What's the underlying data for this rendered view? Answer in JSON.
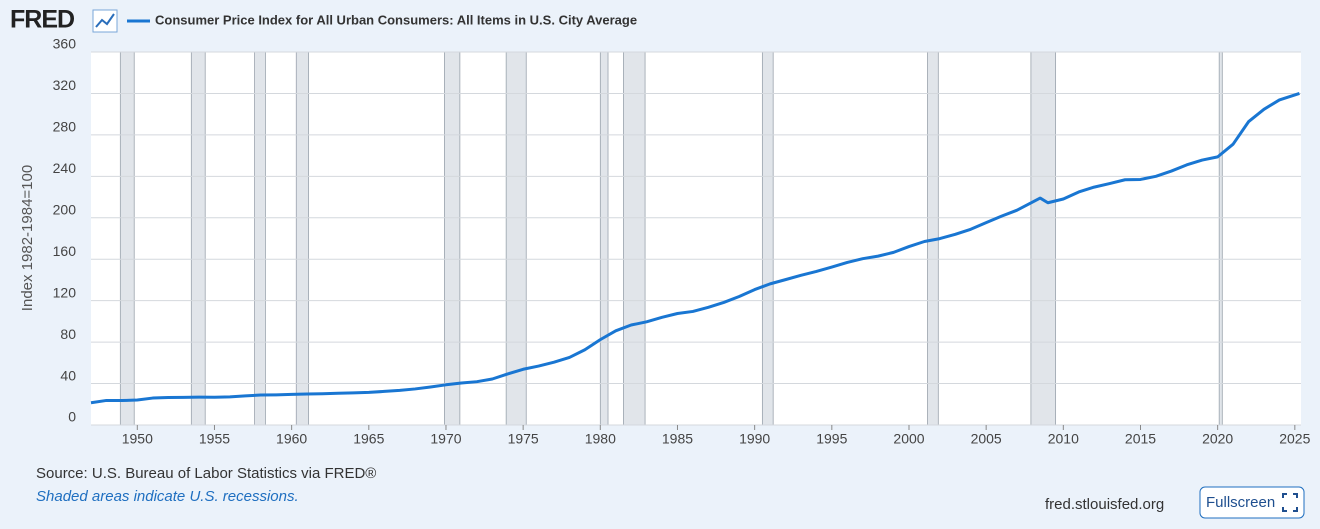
{
  "logo": "FRED",
  "source": "Source: U.S. Bureau of Labor Statistics via FRED®",
  "note": "Shaded areas indicate U.S. recessions.",
  "site": "fred.stlouisfed.org",
  "button": "Fullscreen",
  "chart_data": {
    "type": "line",
    "y_label": "Index 1982-1984=100",
    "x": [
      1947,
      1948,
      1949,
      1950,
      1951,
      1952,
      1953,
      1954,
      1955,
      1956,
      1957,
      1958,
      1959,
      1960,
      1961,
      1962,
      1963,
      1964,
      1965,
      1966,
      1967,
      1968,
      1969,
      1970,
      1971,
      1972,
      1973,
      1974,
      1975,
      1976,
      1977,
      1978,
      1979,
      1980,
      1981,
      1982,
      1983,
      1984,
      1985,
      1986,
      1987,
      1988,
      1989,
      1990,
      1991,
      1992,
      1993,
      1994,
      1995,
      1996,
      1997,
      1998,
      1999,
      2000,
      2001,
      2002,
      2003,
      2004,
      2005,
      2006,
      2007,
      2008.5,
      2009,
      2010,
      2011,
      2012,
      2013,
      2014,
      2015,
      2016,
      2017,
      2018,
      2019,
      2020,
      2021,
      2022,
      2023,
      2024,
      2025.3
    ],
    "series": [
      {
        "name": "Consumer Price Index for All Urban Consumers: All Items in U.S. City Average",
        "color": "#1976d2",
        "values": [
          21.5,
          23.7,
          23.6,
          24.1,
          26.0,
          26.5,
          26.7,
          26.9,
          26.8,
          27.2,
          28.1,
          28.9,
          29.1,
          29.6,
          29.9,
          30.2,
          30.6,
          31.0,
          31.5,
          32.4,
          33.4,
          34.8,
          36.7,
          38.8,
          40.5,
          41.8,
          44.4,
          49.3,
          53.8,
          56.9,
          60.6,
          65.2,
          72.6,
          82.4,
          90.9,
          96.5,
          99.6,
          103.9,
          107.6,
          109.6,
          113.6,
          118.3,
          124.0,
          130.7,
          136.2,
          140.3,
          144.5,
          148.2,
          152.4,
          156.9,
          160.5,
          163.0,
          166.6,
          172.2,
          177.1,
          179.9,
          184.0,
          188.9,
          195.3,
          201.6,
          207.3,
          219.0,
          214.5,
          218.1,
          224.9,
          229.6,
          233.0,
          236.7,
          237.0,
          240.0,
          245.1,
          251.1,
          255.7,
          258.8,
          271.0,
          292.7,
          304.7,
          313.7,
          320.0
        ]
      }
    ],
    "recessions": [
      [
        1948.9,
        1949.8
      ],
      [
        1953.5,
        1954.4
      ],
      [
        1957.6,
        1958.3
      ],
      [
        1960.3,
        1961.1
      ],
      [
        1969.9,
        1970.9
      ],
      [
        1973.9,
        1975.2
      ],
      [
        1980.0,
        1980.5
      ],
      [
        1981.5,
        1982.9
      ],
      [
        1990.5,
        1991.2
      ],
      [
        2001.2,
        2001.9
      ],
      [
        2007.9,
        2009.5
      ],
      [
        2020.1,
        2020.3
      ]
    ],
    "recession_color": "#e1e5ea",
    "xlim": [
      1947,
      2025.4
    ],
    "xticks": [
      1950,
      1955,
      1960,
      1965,
      1970,
      1975,
      1980,
      1985,
      1990,
      1995,
      2000,
      2005,
      2010,
      2015,
      2020,
      2025
    ],
    "ylim": [
      0,
      360
    ],
    "yticks": [
      0,
      40,
      80,
      120,
      160,
      200,
      240,
      280,
      320,
      360
    ],
    "grid": true
  }
}
